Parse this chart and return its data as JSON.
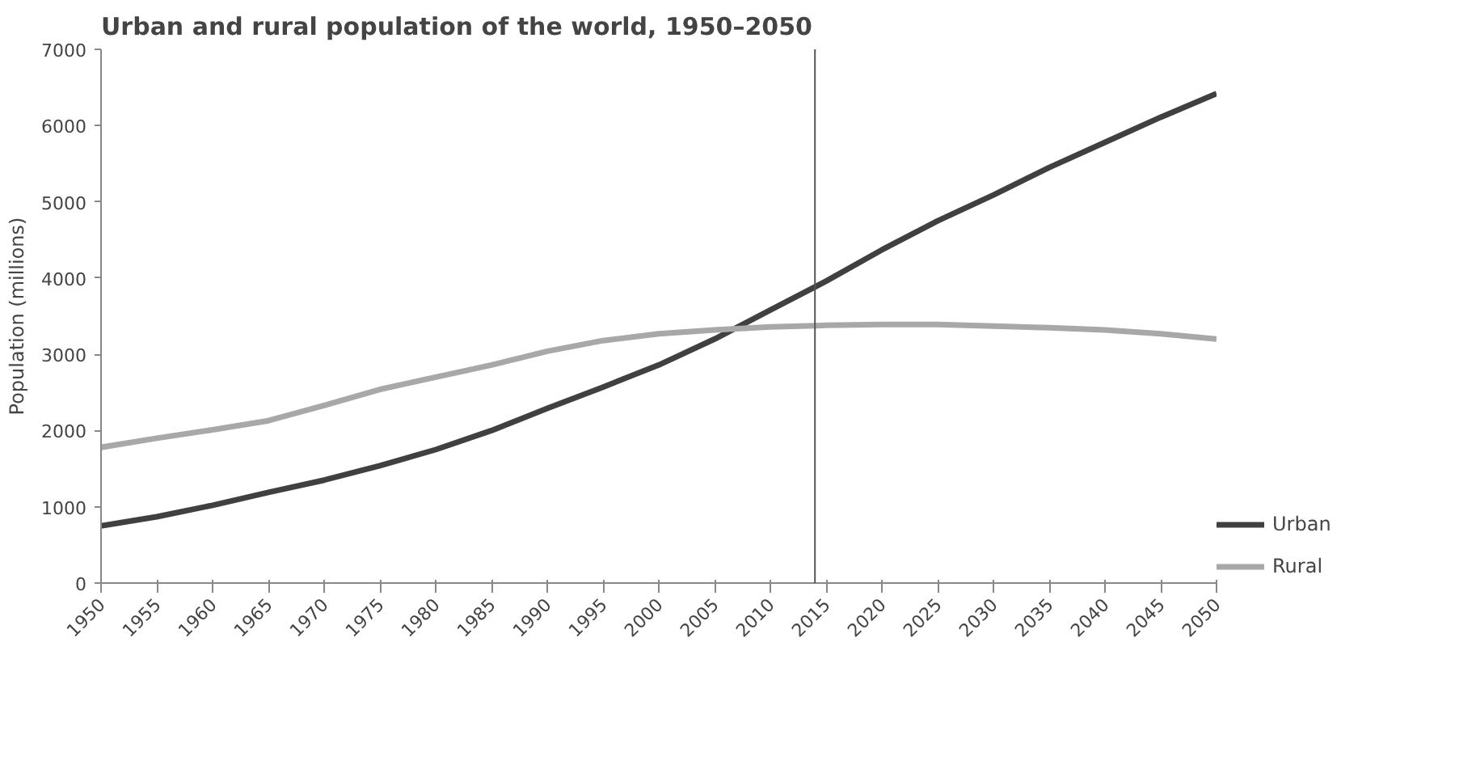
{
  "chart_data": {
    "type": "line",
    "title": "Urban and rural population of the world, 1950–2050",
    "ylabel": "Population (millions)",
    "x": [
      1950,
      1955,
      1960,
      1965,
      1970,
      1975,
      1980,
      1985,
      1990,
      1995,
      2000,
      2005,
      2010,
      2015,
      2020,
      2025,
      2030,
      2035,
      2040,
      2045,
      2050
    ],
    "series": [
      {
        "name": "Urban",
        "color": "#404040",
        "values": [
          750,
          870,
          1020,
          1190,
          1350,
          1540,
          1750,
          2000,
          2290,
          2570,
          2860,
          3200,
          3580,
          3960,
          4370,
          4750,
          5090,
          5450,
          5780,
          6110,
          6420
        ]
      },
      {
        "name": "Rural",
        "color": "#a8a8a8",
        "values": [
          1780,
          1900,
          2010,
          2130,
          2330,
          2540,
          2700,
          2860,
          3040,
          3180,
          3270,
          3320,
          3360,
          3380,
          3390,
          3390,
          3370,
          3350,
          3320,
          3270,
          3200
        ]
      }
    ],
    "xlim": [
      1950,
      2050
    ],
    "ylim": [
      0,
      7000
    ],
    "xticks": [
      1950,
      1955,
      1960,
      1965,
      1970,
      1975,
      1980,
      1985,
      1990,
      1995,
      2000,
      2005,
      2010,
      2015,
      2020,
      2025,
      2030,
      2035,
      2040,
      2045,
      2050
    ],
    "yticks": [
      0,
      1000,
      2000,
      3000,
      4000,
      5000,
      6000,
      7000
    ],
    "ref_lines": [
      {
        "axis": "x",
        "value": 2014,
        "color": "#555555"
      }
    ],
    "grid": false,
    "legend": "bottom right",
    "marker": "none",
    "line_style": "solid"
  }
}
